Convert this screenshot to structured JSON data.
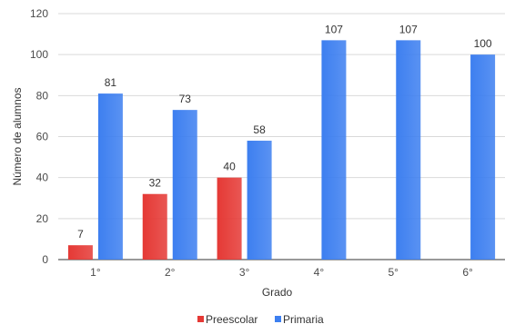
{
  "chart_data": {
    "type": "bar",
    "categories": [
      "1°",
      "2°",
      "3°",
      "4°",
      "5°",
      "6°"
    ],
    "series": [
      {
        "name": "Preescolar",
        "color": "#e53935",
        "values": [
          7,
          32,
          40,
          null,
          null,
          null
        ]
      },
      {
        "name": "Primaria",
        "color": "#3d7ff0",
        "values": [
          81,
          73,
          58,
          107,
          107,
          100
        ]
      }
    ],
    "xlabel": "Grado",
    "ylabel": "Número de alumnos",
    "ylim": [
      0,
      120
    ],
    "yticks": [
      0,
      20,
      40,
      60,
      80,
      100,
      120
    ],
    "grid": true,
    "legend_position": "bottom"
  }
}
